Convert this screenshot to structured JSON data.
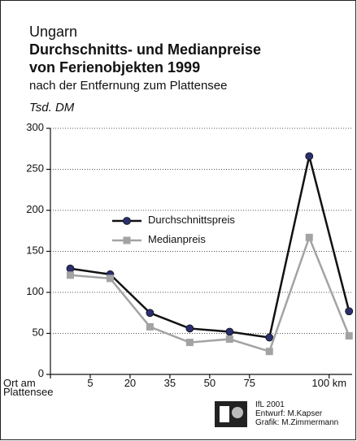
{
  "chart_data": {
    "type": "line",
    "region": "Ungarn",
    "title": "Durchschnitts- und Medianpreise\nvon Ferienobjekten 1999",
    "subtitle": "nach der Entfernung zum Plattensee",
    "y_label": "Tsd. DM",
    "x": [
      0.5,
      1.5,
      2.5,
      3.5,
      4.5,
      5.5,
      6.5,
      7.5
    ],
    "series": [
      {
        "name": "Durchschnittspreis",
        "color": "#111111",
        "marker_color": "#2b2f6e",
        "marker": "circle",
        "values": [
          129,
          122,
          75,
          56,
          52,
          45,
          266,
          77
        ]
      },
      {
        "name": "Medianpreis",
        "color": "#a3a3a3",
        "marker_color": "#a3a3a3",
        "marker": "square",
        "values": [
          121,
          117,
          58,
          39,
          43,
          28,
          167,
          47
        ]
      }
    ],
    "xlim": [
      0,
      7.7
    ],
    "xticks": [
      {
        "value": 0,
        "label": "Ort am\nPlattensee"
      },
      {
        "value": 1,
        "label": "5"
      },
      {
        "value": 2,
        "label": "20"
      },
      {
        "value": 3,
        "label": "35"
      },
      {
        "value": 4,
        "label": "50"
      },
      {
        "value": 5,
        "label": "75"
      },
      {
        "value": 7,
        "label": "100 km"
      }
    ],
    "ylim": [
      0,
      300
    ],
    "yticks": [
      0,
      50,
      100,
      150,
      200,
      250,
      300
    ],
    "grid": true,
    "credits": [
      "IfL 2001",
      "Entwurf: M.Kapser",
      "Grafik: M.Zimmermann"
    ]
  }
}
